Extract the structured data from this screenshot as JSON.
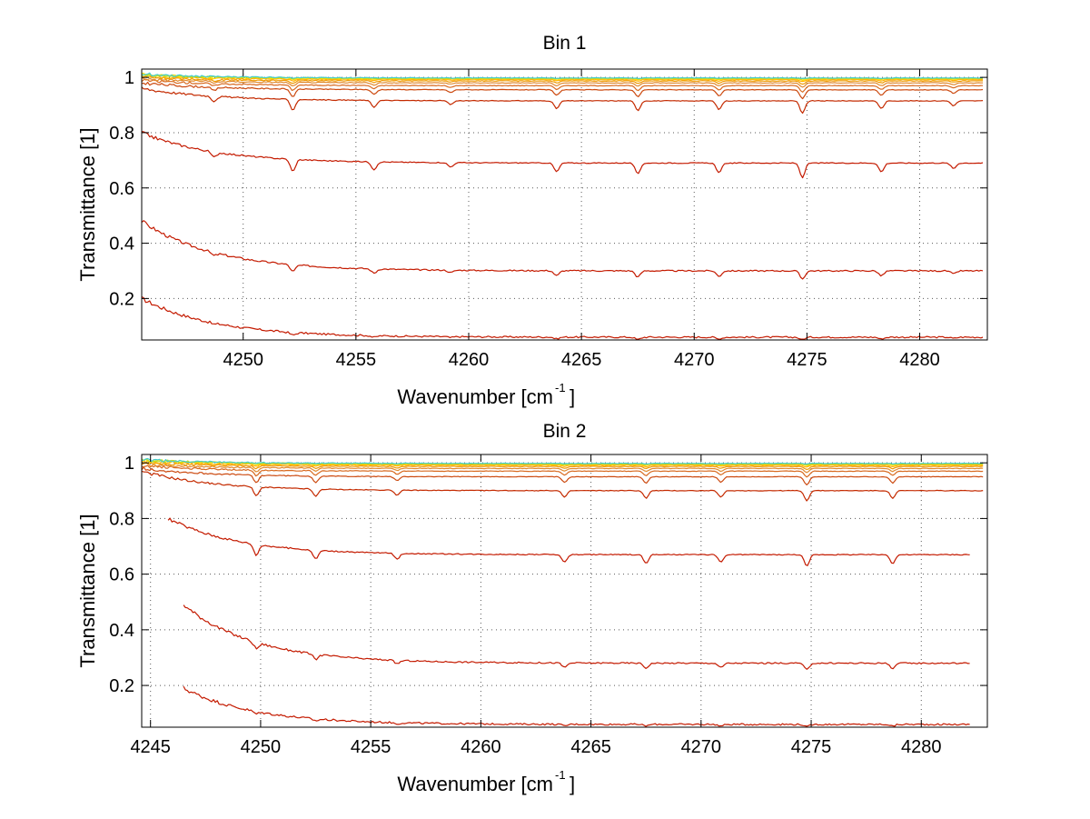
{
  "figure": {
    "panels_count": 2
  },
  "chart_data": [
    {
      "type": "line",
      "title": "Bin 1",
      "xlabel": "Wavenumber [cm",
      "xlabel_sup": "-1",
      "xlabel_suffix": "]",
      "ylabel": "Transmittance [1]",
      "xlim": [
        4245.5,
        4283
      ],
      "ylim": [
        0.05,
        1.03
      ],
      "x_ticks": [
        4250,
        4255,
        4260,
        4265,
        4270,
        4275,
        4280
      ],
      "y_ticks": [
        0.2,
        0.4,
        0.6,
        0.8,
        1
      ],
      "x_tick_labels": [
        "4250",
        "4255",
        "4260",
        "4265",
        "4270",
        "4275",
        "4280"
      ],
      "y_tick_labels": [
        "0.2",
        "0.4",
        "0.6",
        "0.8",
        "1"
      ],
      "grid": true,
      "x_start": 4245.5,
      "x_end": 4282.8,
      "absorption_lines": [
        {
          "x": 4248.7,
          "depth": 0.25
        },
        {
          "x": 4252.2,
          "depth": 0.55
        },
        {
          "x": 4255.8,
          "depth": 0.35
        },
        {
          "x": 4259.2,
          "depth": 0.2
        },
        {
          "x": 4263.9,
          "depth": 0.4
        },
        {
          "x": 4267.5,
          "depth": 0.5
        },
        {
          "x": 4271.1,
          "depth": 0.45
        },
        {
          "x": 4274.8,
          "depth": 0.65
        },
        {
          "x": 4278.3,
          "depth": 0.4
        },
        {
          "x": 4281.5,
          "depth": 0.25
        }
      ],
      "series": [
        {
          "color": "#c41a00",
          "start": 0.2,
          "base": 0.06,
          "depth": 0.018
        },
        {
          "color": "#c41a00",
          "start": 0.48,
          "base": 0.3,
          "depth": 0.045
        },
        {
          "color": "#c41a00",
          "start": 0.8,
          "base": 0.69,
          "depth": 0.08
        },
        {
          "color": "#c42a00",
          "start": 0.96,
          "base": 0.915,
          "depth": 0.07
        },
        {
          "color": "#cc4a10",
          "start": 0.98,
          "base": 0.955,
          "depth": 0.05
        },
        {
          "color": "#d86a20",
          "start": 0.99,
          "base": 0.97,
          "depth": 0.035
        },
        {
          "color": "#e08a30",
          "start": 0.995,
          "base": 0.98,
          "depth": 0.025
        },
        {
          "color": "#ee9900",
          "start": 1.0,
          "base": 0.987,
          "depth": 0.018
        },
        {
          "color": "#ffb000",
          "start": 1.005,
          "base": 0.992,
          "depth": 0.012
        },
        {
          "color": "#ffdd00",
          "start": 1.01,
          "base": 0.995,
          "depth": 0.008
        },
        {
          "color": "#bbdd22",
          "start": 1.01,
          "base": 0.997,
          "depth": 0.005
        },
        {
          "color": "#44cccc",
          "start": 1.012,
          "base": 0.998,
          "depth": 0.003
        }
      ]
    },
    {
      "type": "line",
      "title": "Bin 2",
      "xlabel": "Wavenumber [cm",
      "xlabel_sup": "-1",
      "xlabel_suffix": "]",
      "ylabel": "Transmittance [1]",
      "xlim": [
        4244.6,
        4283
      ],
      "ylim": [
        0.05,
        1.03
      ],
      "x_ticks": [
        4245,
        4250,
        4255,
        4260,
        4265,
        4270,
        4275,
        4280
      ],
      "y_ticks": [
        0.2,
        0.4,
        0.6,
        0.8,
        1
      ],
      "x_tick_labels": [
        "4245",
        "4250",
        "4255",
        "4260",
        "4265",
        "4270",
        "4275",
        "4280"
      ],
      "y_tick_labels": [
        "0.2",
        "0.4",
        "0.6",
        "0.8",
        "1"
      ],
      "grid": true,
      "x_start": 4244.6,
      "x_end": 4282.8,
      "absorption_lines": [
        {
          "x": 4249.8,
          "depth": 0.55
        },
        {
          "x": 4252.5,
          "depth": 0.45
        },
        {
          "x": 4256.2,
          "depth": 0.3
        },
        {
          "x": 4263.8,
          "depth": 0.4
        },
        {
          "x": 4267.5,
          "depth": 0.45
        },
        {
          "x": 4270.9,
          "depth": 0.4
        },
        {
          "x": 4274.8,
          "depth": 0.6
        },
        {
          "x": 4278.7,
          "depth": 0.45
        }
      ],
      "series": [
        {
          "color": "#c41a00",
          "x_start": 4246.5,
          "x_end": 4282.2,
          "start": 0.19,
          "base": 0.06,
          "depth": 0.015
        },
        {
          "color": "#c41a00",
          "x_start": 4246.5,
          "x_end": 4282.2,
          "start": 0.49,
          "base": 0.28,
          "depth": 0.04
        },
        {
          "color": "#c41a00",
          "x_start": 4245.8,
          "x_end": 4282.2,
          "start": 0.8,
          "base": 0.67,
          "depth": 0.07
        },
        {
          "color": "#c42a00",
          "start": 0.97,
          "base": 0.9,
          "depth": 0.06
        },
        {
          "color": "#cc4a10",
          "start": 0.98,
          "base": 0.95,
          "depth": 0.05
        },
        {
          "color": "#d86a20",
          "start": 0.99,
          "base": 0.97,
          "depth": 0.035
        },
        {
          "color": "#e08a30",
          "start": 0.995,
          "base": 0.98,
          "depth": 0.025
        },
        {
          "color": "#ee9900",
          "start": 1.0,
          "base": 0.987,
          "depth": 0.018
        },
        {
          "color": "#ffb000",
          "start": 1.005,
          "base": 0.992,
          "depth": 0.012
        },
        {
          "color": "#ffdd00",
          "start": 1.01,
          "base": 0.995,
          "depth": 0.008
        },
        {
          "color": "#bbdd22",
          "start": 1.01,
          "base": 0.997,
          "depth": 0.005
        },
        {
          "color": "#44cccc",
          "start": 1.012,
          "base": 0.998,
          "depth": 0.003
        }
      ]
    }
  ]
}
